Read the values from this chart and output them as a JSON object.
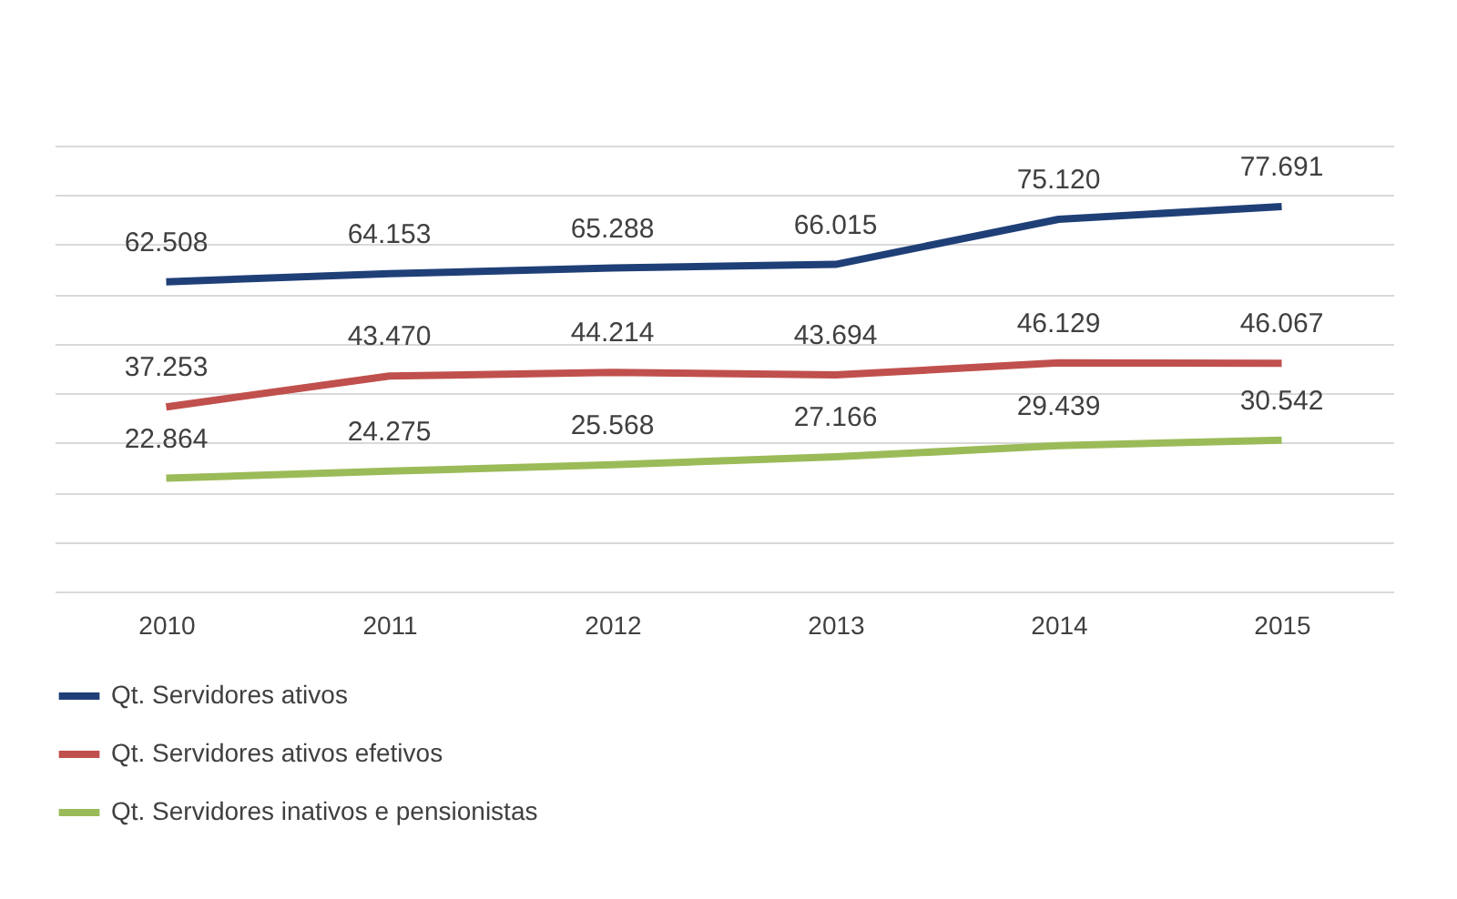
{
  "chart_data": {
    "type": "line",
    "categories": [
      "2010",
      "2011",
      "2012",
      "2013",
      "2014",
      "2015"
    ],
    "series": [
      {
        "name": "Qt. Servidores ativos",
        "color": "#1f3f77",
        "values": [
          62508,
          64153,
          65288,
          66015,
          75120,
          77691
        ],
        "value_labels": [
          "62.508",
          "64.153",
          "65.288",
          "66.015",
          "75.120",
          "77.691"
        ]
      },
      {
        "name": "Qt. Servidores ativos efetivos",
        "color": "#c0504d",
        "values": [
          37253,
          43470,
          44214,
          43694,
          46129,
          46067
        ],
        "value_labels": [
          "37.253",
          "43.470",
          "44.214",
          "43.694",
          "46.129",
          "46.067"
        ]
      },
      {
        "name": "Qt. Servidores inativos e pensionistas",
        "color": "#9bbb59",
        "values": [
          22864,
          24275,
          25568,
          27166,
          29439,
          30542
        ],
        "value_labels": [
          "22.864",
          "24.275",
          "25.568",
          "27.166",
          "29.439",
          "30.542"
        ]
      }
    ],
    "ylim": [
      0,
      90000
    ],
    "yticks": [
      {
        "value": 0,
        "label": null
      },
      {
        "value": 10000,
        "label": null
      },
      {
        "value": 20000,
        "label": null
      },
      {
        "value": 30000,
        "label": null
      },
      {
        "value": 40000,
        "label": null
      },
      {
        "value": 50000,
        "label": null
      },
      {
        "value": 60000,
        "label": null
      },
      {
        "value": 70000,
        "label": null
      },
      {
        "value": 80000,
        "label": null
      },
      {
        "value": 90000,
        "label": null
      }
    ],
    "tick_labels": "x",
    "grid": "y",
    "legend": "bottom",
    "marker": "none",
    "line_style": "solid"
  }
}
